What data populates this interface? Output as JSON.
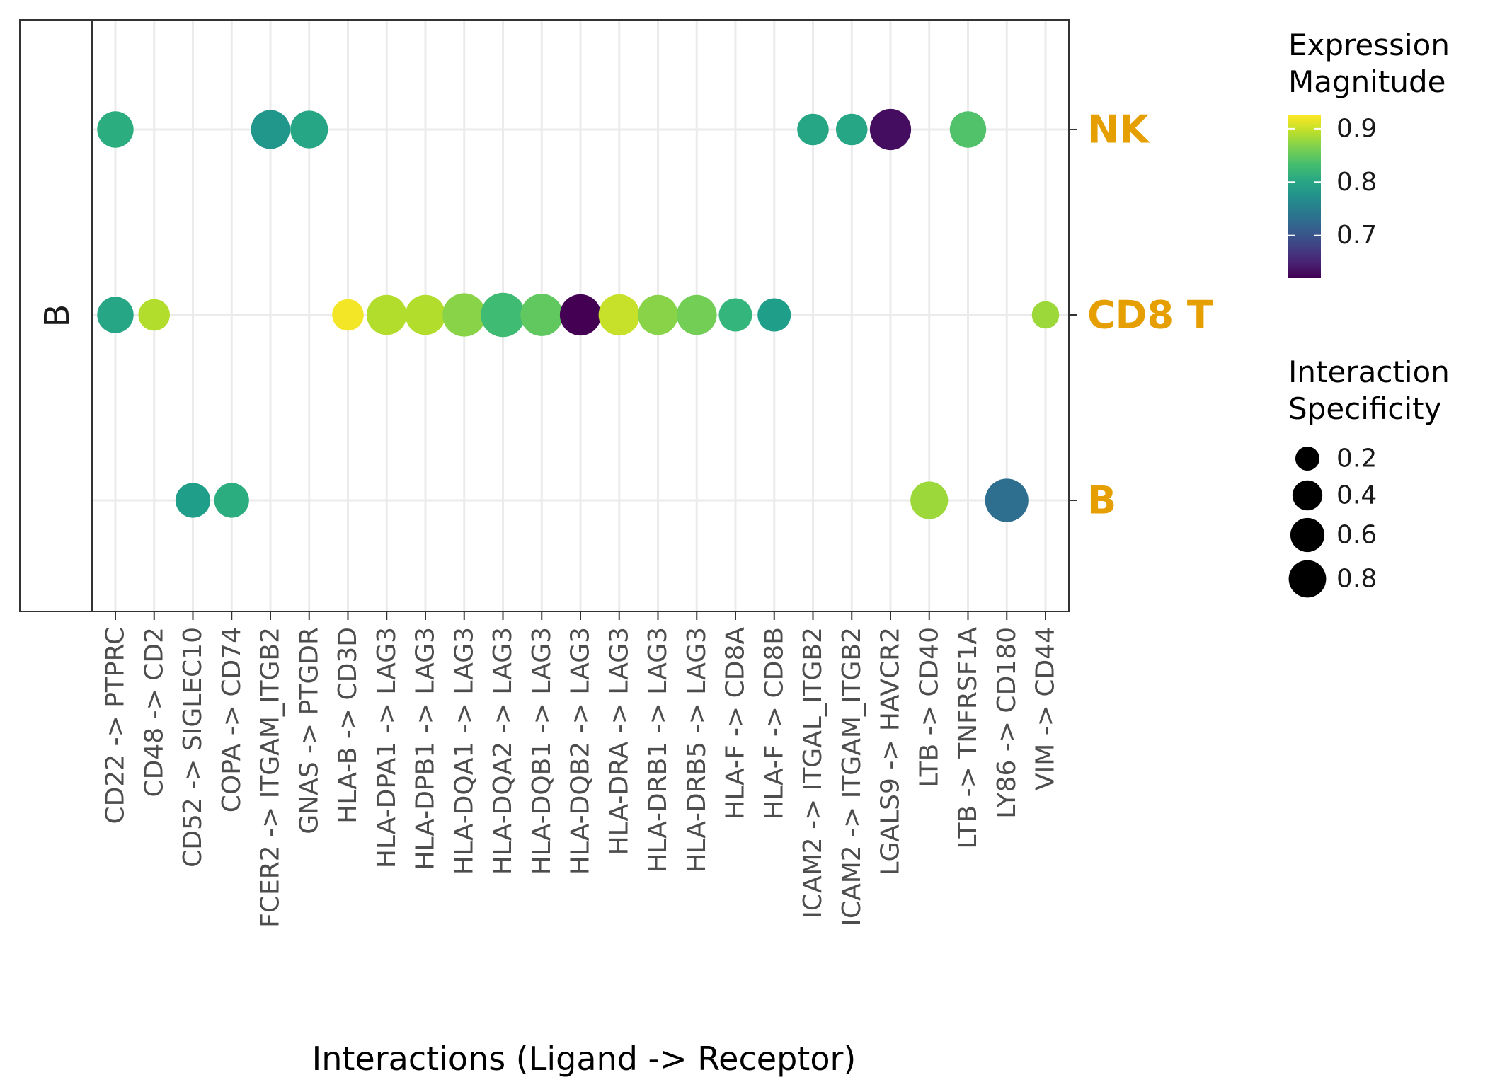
{
  "chart_data": {
    "type": "scatter",
    "xlabel": "Interactions (Ligand -> Receptor)",
    "facet_label": "B",
    "categories": [
      "CD22 -> PTPRC",
      "CD48 -> CD2",
      "CD52 -> SIGLEC10",
      "COPA -> CD74",
      "FCER2 -> ITGAM_ITGB2",
      "GNAS -> PTGDR",
      "HLA-B -> CD3D",
      "HLA-DPA1 -> LAG3",
      "HLA-DPB1 -> LAG3",
      "HLA-DQA1 -> LAG3",
      "HLA-DQA2 -> LAG3",
      "HLA-DQB1 -> LAG3",
      "HLA-DQB2 -> LAG3",
      "HLA-DRA -> LAG3",
      "HLA-DRB1 -> LAG3",
      "HLA-DRB5 -> LAG3",
      "HLA-F -> CD8A",
      "HLA-F -> CD8B",
      "ICAM2 -> ITGAL_ITGB2",
      "ICAM2 -> ITGAM_ITGB2",
      "LGALS9 -> HAVCR2",
      "LTB -> CD40",
      "LTB -> TNFRSF1A",
      "LY86 -> CD180",
      "VIM -> CD44"
    ],
    "y_categories": [
      "NK",
      "CD8 T",
      "B"
    ],
    "y_label_color": "#E69F00",
    "grid": true,
    "legend": {
      "color_title": "Expression\nMagnitude",
      "color_title_lines": [
        "Expression",
        "Magnitude"
      ],
      "color_ticks": [
        0.9,
        0.8,
        0.7
      ],
      "color_range": [
        0.62,
        0.925
      ],
      "palette": "viridis",
      "size_title_lines": [
        "Interaction",
        "Specificity"
      ],
      "size_ticks": [
        0.2,
        0.4,
        0.6,
        0.8
      ],
      "size_range": [
        0.1,
        0.85
      ],
      "placement": "right"
    },
    "points": [
      {
        "x": "CD22 -> PTPRC",
        "y": "NK",
        "magnitude": 0.81,
        "specificity": 0.45
      },
      {
        "x": "FCER2 -> ITGAM_ITGB2",
        "y": "NK",
        "magnitude": 0.78,
        "specificity": 0.55
      },
      {
        "x": "GNAS -> PTGDR",
        "y": "NK",
        "magnitude": 0.8,
        "specificity": 0.5
      },
      {
        "x": "ICAM2 -> ITGAL_ITGB2",
        "y": "NK",
        "magnitude": 0.8,
        "specificity": 0.3
      },
      {
        "x": "ICAM2 -> ITGAM_ITGB2",
        "y": "NK",
        "magnitude": 0.8,
        "specificity": 0.3
      },
      {
        "x": "LGALS9 -> HAVCR2",
        "y": "NK",
        "magnitude": 0.63,
        "specificity": 0.65
      },
      {
        "x": "LTB -> TNFRSF1A",
        "y": "NK",
        "magnitude": 0.84,
        "specificity": 0.45
      },
      {
        "x": "CD22 -> PTPRC",
        "y": "CD8 T",
        "magnitude": 0.8,
        "specificity": 0.45
      },
      {
        "x": "CD48 -> CD2",
        "y": "CD8 T",
        "magnitude": 0.89,
        "specificity": 0.3
      },
      {
        "x": "HLA-B -> CD3D",
        "y": "CD8 T",
        "magnitude": 0.92,
        "specificity": 0.3
      },
      {
        "x": "HLA-DPA1 -> LAG3",
        "y": "CD8 T",
        "magnitude": 0.89,
        "specificity": 0.6
      },
      {
        "x": "HLA-DPB1 -> LAG3",
        "y": "CD8 T",
        "magnitude": 0.89,
        "specificity": 0.6
      },
      {
        "x": "HLA-DQA1 -> LAG3",
        "y": "CD8 T",
        "magnitude": 0.87,
        "specificity": 0.75
      },
      {
        "x": "HLA-DQA2 -> LAG3",
        "y": "CD8 T",
        "magnitude": 0.83,
        "specificity": 0.8
      },
      {
        "x": "HLA-DQB1 -> LAG3",
        "y": "CD8 T",
        "magnitude": 0.85,
        "specificity": 0.7
      },
      {
        "x": "HLA-DQB2 -> LAG3",
        "y": "CD8 T",
        "magnitude": 0.62,
        "specificity": 0.65
      },
      {
        "x": "HLA-DRA -> LAG3",
        "y": "CD8 T",
        "magnitude": 0.9,
        "specificity": 0.65
      },
      {
        "x": "HLA-DRB1 -> LAG3",
        "y": "CD8 T",
        "magnitude": 0.87,
        "specificity": 0.6
      },
      {
        "x": "HLA-DRB5 -> LAG3",
        "y": "CD8 T",
        "magnitude": 0.86,
        "specificity": 0.6
      },
      {
        "x": "HLA-F -> CD8A",
        "y": "CD8 T",
        "magnitude": 0.82,
        "specificity": 0.35
      },
      {
        "x": "HLA-F -> CD8B",
        "y": "CD8 T",
        "magnitude": 0.79,
        "specificity": 0.35
      },
      {
        "x": "VIM -> CD44",
        "y": "CD8 T",
        "magnitude": 0.88,
        "specificity": 0.2
      },
      {
        "x": "CD52 -> SIGLEC10",
        "y": "B",
        "magnitude": 0.79,
        "specificity": 0.4
      },
      {
        "x": "COPA -> CD74",
        "y": "B",
        "magnitude": 0.81,
        "specificity": 0.4
      },
      {
        "x": "LTB -> CD40",
        "y": "B",
        "magnitude": 0.88,
        "specificity": 0.5
      },
      {
        "x": "LY86 -> CD180",
        "y": "B",
        "magnitude": 0.73,
        "specificity": 0.75
      }
    ]
  }
}
